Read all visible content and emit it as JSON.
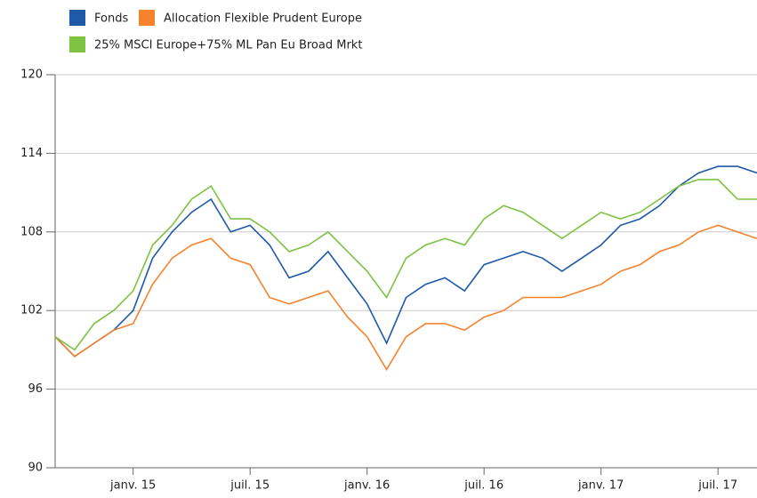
{
  "chart_data": {
    "type": "line",
    "x": [
      "2014-09",
      "2014-10",
      "2014-11",
      "2014-12",
      "2015-01",
      "2015-02",
      "2015-03",
      "2015-04",
      "2015-05",
      "2015-06",
      "2015-07",
      "2015-08",
      "2015-09",
      "2015-10",
      "2015-11",
      "2015-12",
      "2016-01",
      "2016-02",
      "2016-03",
      "2016-04",
      "2016-05",
      "2016-06",
      "2016-07",
      "2016-08",
      "2016-09",
      "2016-10",
      "2016-11",
      "2016-12",
      "2017-01",
      "2017-02",
      "2017-03",
      "2017-04",
      "2017-05",
      "2017-06",
      "2017-07",
      "2017-08",
      "2017-09"
    ],
    "series": [
      {
        "name": "Fonds",
        "color": "#1f5aa8",
        "values": [
          100,
          98.5,
          99.5,
          100.5,
          102,
          106,
          108,
          109.5,
          110.5,
          108,
          108.5,
          107,
          104.5,
          105,
          106.5,
          104.5,
          102.5,
          99.5,
          103,
          104,
          104.5,
          103.5,
          105.5,
          106,
          106.5,
          106,
          105,
          106,
          107,
          108.5,
          109,
          110,
          111.5,
          112.5,
          113,
          113,
          112.5
        ]
      },
      {
        "name": "Allocation Flexible Prudent Europe",
        "color": "#f5822d",
        "values": [
          100,
          98.5,
          99.5,
          100.5,
          101,
          104,
          106,
          107,
          107.5,
          106,
          105.5,
          103,
          102.5,
          103,
          103.5,
          101.5,
          100,
          97.5,
          100,
          101,
          101,
          100.5,
          101.5,
          102,
          103,
          103,
          103,
          103.5,
          104,
          105,
          105.5,
          106.5,
          107,
          108,
          108.5,
          108,
          107.5
        ]
      },
      {
        "name": "25% MSCI Europe+75% ML Pan Eu Broad Mrkt",
        "color": "#7dc242",
        "values": [
          100,
          99,
          101,
          102,
          103.5,
          107,
          108.5,
          110.5,
          111.5,
          109,
          109,
          108,
          106.5,
          107,
          108,
          106.5,
          105,
          103,
          106,
          107,
          107.5,
          107,
          109,
          110,
          109.5,
          108.5,
          107.5,
          108.5,
          109.5,
          109,
          109.5,
          110.5,
          111.5,
          112,
          112,
          110.5,
          110.5
        ]
      }
    ],
    "xlim": [
      "2014-09",
      "2017-09"
    ],
    "xticks": [
      {
        "value": "2015-01",
        "label": "janv. 15"
      },
      {
        "value": "2015-07",
        "label": "juil. 15"
      },
      {
        "value": "2016-01",
        "label": "janv. 16"
      },
      {
        "value": "2016-07",
        "label": "juil. 16"
      },
      {
        "value": "2017-01",
        "label": "janv. 17"
      },
      {
        "value": "2017-07",
        "label": "juil. 17"
      }
    ],
    "ylim": [
      90,
      120
    ],
    "yticks": [
      90,
      96,
      102,
      108,
      114,
      120
    ],
    "grid": true,
    "legend": "top"
  }
}
